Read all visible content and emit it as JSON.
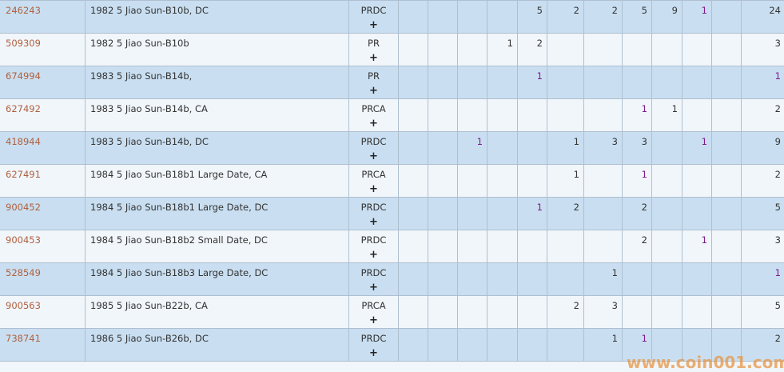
{
  "rows": [
    {
      "id": "246243",
      "desc": "1982 5 Jiao Sun-B10b, DC",
      "designation": "PRDC",
      "plus": "+",
      "cells": [
        {},
        {},
        {},
        {},
        {
          "v": "5"
        },
        {
          "v": "2"
        },
        {
          "v": "2"
        },
        {
          "v": "5"
        },
        {
          "v": "9"
        },
        {
          "v": "1",
          "hi": true
        },
        {},
        {
          "v": "24"
        }
      ]
    },
    {
      "id": "509309",
      "desc": "1982 5 Jiao Sun-B10b",
      "designation": "PR",
      "plus": "+",
      "cells": [
        {},
        {},
        {},
        {
          "v": "1"
        },
        {
          "v": "2"
        },
        {},
        {},
        {},
        {},
        {},
        {},
        {
          "v": "3"
        }
      ]
    },
    {
      "id": "674994",
      "desc": "1983 5 Jiao Sun-B14b,",
      "designation": "PR",
      "plus": "+",
      "cells": [
        {},
        {},
        {},
        {},
        {
          "v": "1",
          "hi": true
        },
        {},
        {},
        {},
        {},
        {},
        {},
        {
          "v": "1",
          "hi": true
        }
      ]
    },
    {
      "id": "627492",
      "desc": "1983 5 Jiao Sun-B14b, CA",
      "designation": "PRCA",
      "plus": "+",
      "cells": [
        {},
        {},
        {},
        {},
        {},
        {},
        {},
        {
          "v": "1",
          "hi": true
        },
        {
          "v": "1"
        },
        {},
        {},
        {
          "v": "2"
        }
      ]
    },
    {
      "id": "418944",
      "desc": "1983 5 Jiao Sun-B14b, DC",
      "designation": "PRDC",
      "plus": "+",
      "cells": [
        {},
        {},
        {
          "v": "1",
          "hi": true
        },
        {},
        {},
        {
          "v": "1"
        },
        {
          "v": "3"
        },
        {
          "v": "3"
        },
        {},
        {
          "v": "1",
          "hi": true
        },
        {},
        {
          "v": "9"
        }
      ]
    },
    {
      "id": "627491",
      "desc": "1984 5 Jiao Sun-B18b1 Large Date, CA",
      "designation": "PRCA",
      "plus": "+",
      "cells": [
        {},
        {},
        {},
        {},
        {},
        {
          "v": "1"
        },
        {},
        {
          "v": "1",
          "hi": true
        },
        {},
        {},
        {},
        {
          "v": "2"
        }
      ]
    },
    {
      "id": "900452",
      "desc": "1984 5 Jiao Sun-B18b1 Large Date, DC",
      "designation": "PRDC",
      "plus": "+",
      "cells": [
        {},
        {},
        {},
        {},
        {
          "v": "1",
          "hi": true
        },
        {
          "v": "2"
        },
        {},
        {
          "v": "2"
        },
        {},
        {},
        {},
        {
          "v": "5"
        }
      ]
    },
    {
      "id": "900453",
      "desc": "1984 5 Jiao Sun-B18b2 Small Date, DC",
      "designation": "PRDC",
      "plus": "+",
      "cells": [
        {},
        {},
        {},
        {},
        {},
        {},
        {},
        {
          "v": "2"
        },
        {},
        {
          "v": "1",
          "hi": true
        },
        {},
        {
          "v": "3"
        }
      ]
    },
    {
      "id": "528549",
      "desc": "1984 5 Jiao Sun-B18b3 Large Date, DC",
      "designation": "PRDC",
      "plus": "+",
      "cells": [
        {},
        {},
        {},
        {},
        {},
        {},
        {
          "v": "1"
        },
        {},
        {},
        {},
        {},
        {
          "v": "1",
          "hi": true
        }
      ]
    },
    {
      "id": "900563",
      "desc": "1985 5 Jiao Sun-B22b, CA",
      "designation": "PRCA",
      "plus": "+",
      "cells": [
        {},
        {},
        {},
        {},
        {},
        {
          "v": "2"
        },
        {
          "v": "3"
        },
        {},
        {},
        {},
        {},
        {
          "v": "5"
        }
      ]
    },
    {
      "id": "738741",
      "desc": "1986 5 Jiao Sun-B26b, DC",
      "designation": "PRDC",
      "plus": "+",
      "cells": [
        {},
        {},
        {},
        {},
        {},
        {},
        {
          "v": "1"
        },
        {
          "v": "1",
          "hi": true
        },
        {},
        {},
        {},
        {
          "v": "2"
        }
      ]
    }
  ],
  "watermark": "www.coin001.com",
  "colors": {
    "row_blue": "#c9dff1",
    "row_white": "#f1f6fb",
    "id_link": "#b0603f",
    "highlight": "#7d1a8c",
    "watermark": "#e69646"
  }
}
